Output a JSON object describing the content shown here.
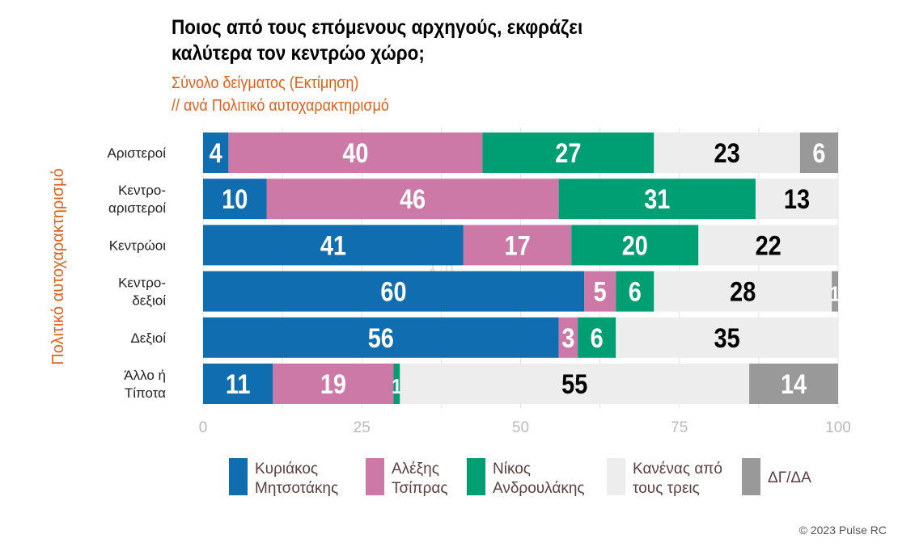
{
  "chart_data": {
    "type": "bar",
    "orientation": "horizontal",
    "stacked": true,
    "title": "Ποιος από τους επόμενους αρχηγούς, εκφράζει καλύτερα τον κεντρώο χώρο;",
    "title_lines": [
      "Ποιος από τους επόμενους αρχηγούς, εκφράζει",
      "καλύτερα τον κεντρώο χώρο;"
    ],
    "subtitle_lines": [
      "Σύνολο δείγματος   (Εκτίμηση)",
      " // ανά Πολιτικό αυτοχαρακτηρισμό"
    ],
    "ylabel": "Πολιτικό αυτοχαρακτηρισμό",
    "xlabel": "",
    "xlim": [
      0,
      100
    ],
    "xticks": [
      0,
      25,
      50,
      75,
      100
    ],
    "grid": true,
    "legend_position": "bottom",
    "categories": [
      [
        "Αριστεροί"
      ],
      [
        "Κεντρο-",
        "αριστεροί"
      ],
      [
        "Κεντρώοι"
      ],
      [
        "Κεντρο-",
        "δεξιοί"
      ],
      [
        "Δεξιοί"
      ],
      [
        "Άλλο ή",
        "Τίποτα"
      ]
    ],
    "series": [
      {
        "name": [
          "Κυριάκος",
          "Μητσοτάκης"
        ],
        "color": "#0F6DB0",
        "label_color": "#ffffff",
        "values": [
          4,
          10,
          41,
          60,
          56,
          11
        ]
      },
      {
        "name": [
          "Αλέξης",
          "Τσίπρας"
        ],
        "color": "#CC79A7",
        "label_color": "#ffffff",
        "values": [
          40,
          46,
          17,
          5,
          3,
          19
        ]
      },
      {
        "name": [
          "Νίκος",
          "Ανδρουλάκης"
        ],
        "color": "#009E73",
        "label_color": "#ffffff",
        "values": [
          27,
          31,
          20,
          6,
          6,
          1
        ]
      },
      {
        "name": [
          "Κανένας από",
          "τους τρεις"
        ],
        "color": "#EDEDED",
        "label_color": "#000000",
        "values": [
          23,
          13,
          22,
          28,
          35,
          55
        ]
      },
      {
        "name": [
          "ΔΓ/ΔΑ"
        ],
        "color": "#999999",
        "label_color": "#ffffff",
        "values": [
          6,
          0,
          0,
          1,
          0,
          14
        ]
      }
    ]
  },
  "watermark": {
    "main": "PULSE",
    "sub": "RESEARCH & CONSULTING"
  },
  "copyright": "© 2023 Pulse RC"
}
